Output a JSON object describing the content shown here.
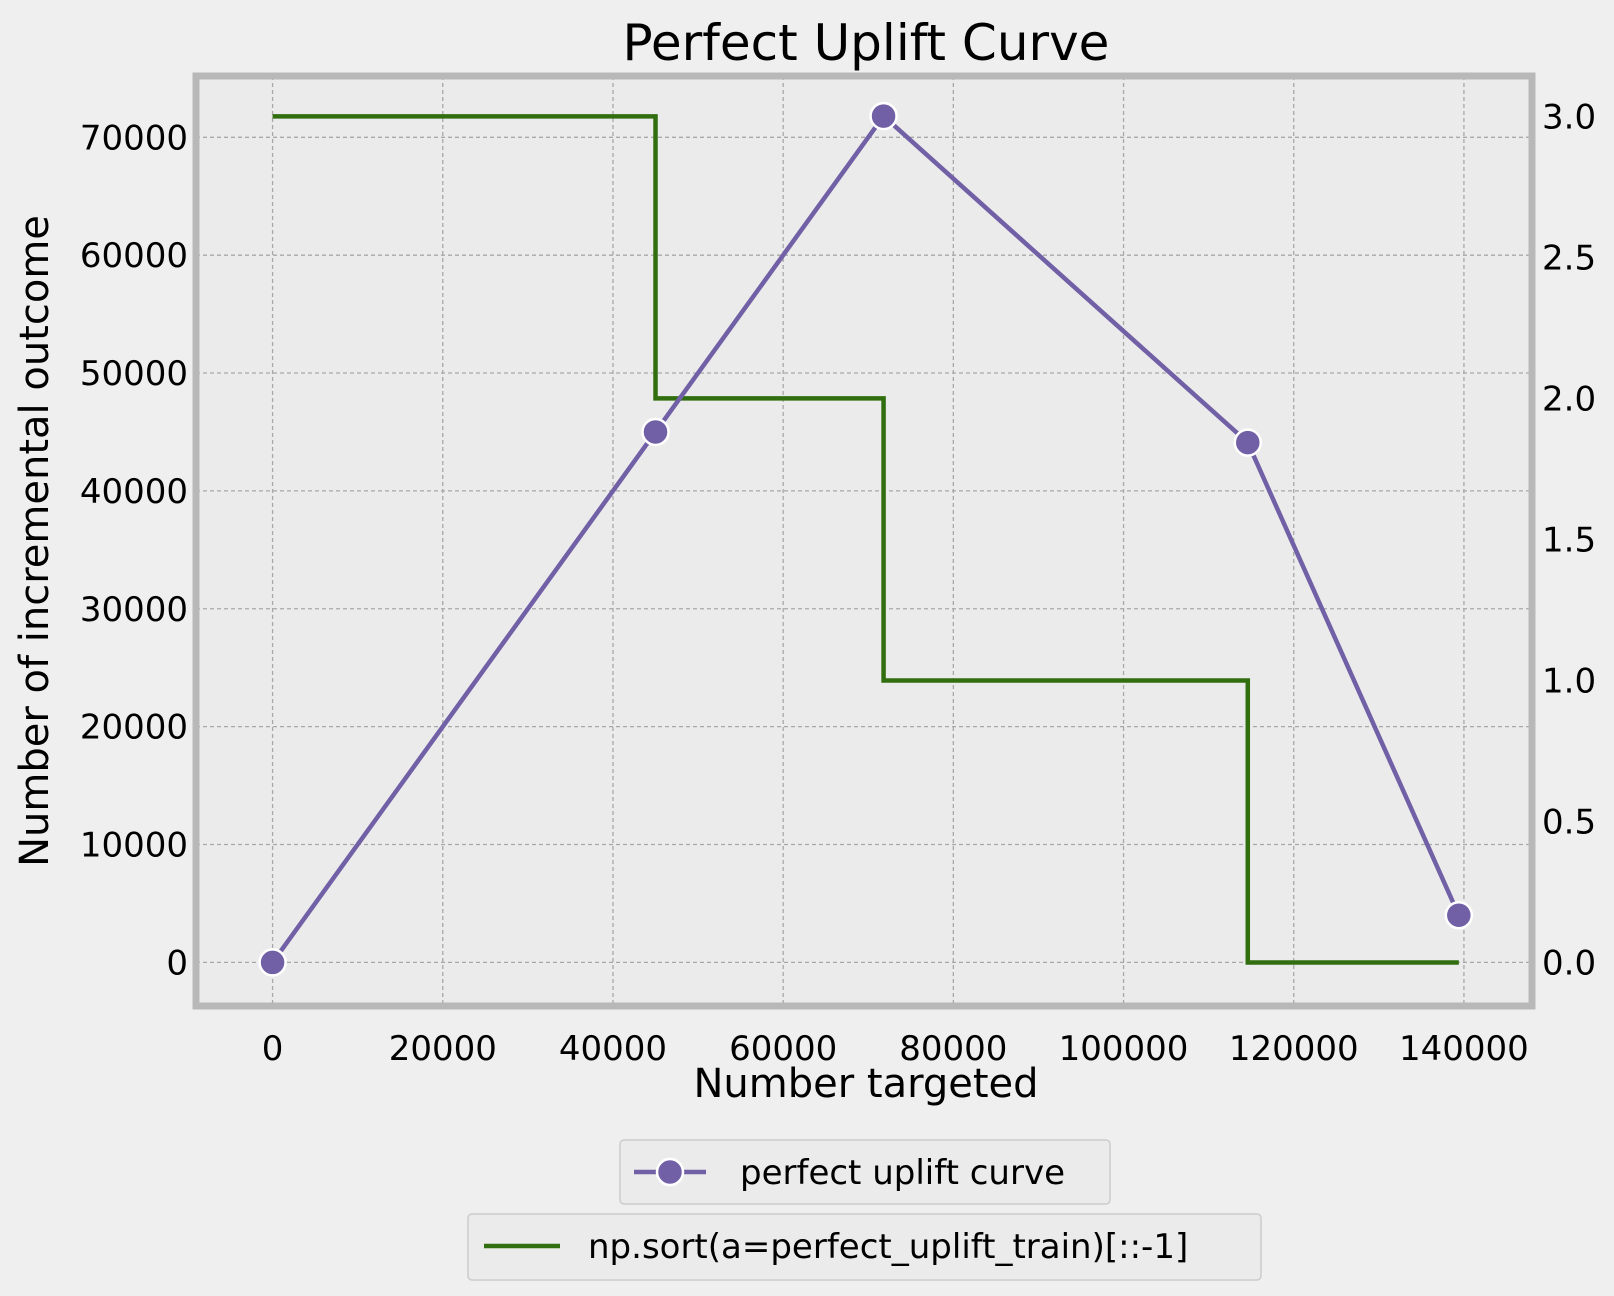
{
  "chart_data": {
    "type": "line",
    "title": "Perfect Uplift Curve",
    "xlabel": "Number targeted",
    "ylabel": "Number of incremental outcome",
    "y2label": "",
    "xlim": [
      -9000,
      148000
    ],
    "ylim": [
      -3700,
      75200
    ],
    "y2lim": [
      -0.154,
      3.143
    ],
    "xticks": [
      0,
      20000,
      40000,
      60000,
      80000,
      100000,
      120000,
      140000
    ],
    "yticks": [
      0,
      10000,
      20000,
      30000,
      40000,
      50000,
      60000,
      70000
    ],
    "y2ticks": [
      0.0,
      0.5,
      1.0,
      1.5,
      2.0,
      2.5,
      3.0
    ],
    "grid": true,
    "legend_placement": "bottom-center (below plot)",
    "series": [
      {
        "name": "perfect uplift curve",
        "axis": "left",
        "style": "line-with-markers",
        "color": "#7160a6",
        "x": [
          0,
          45000,
          71800,
          114600,
          139400
        ],
        "y": [
          0,
          45000,
          71800,
          44100,
          4000
        ]
      },
      {
        "name": "np.sort(a=perfect_uplift_train)[::-1]",
        "axis": "right",
        "style": "step-post",
        "color": "#316e0f",
        "x": [
          0,
          45000,
          71800,
          114600,
          139400
        ],
        "y": [
          3,
          2,
          1,
          0,
          0
        ]
      }
    ],
    "colors": {
      "figure_bg": "#efefef",
      "axes_bg": "#ebebeb",
      "frame": "#b8b8b8",
      "grid": "#a8a8a8"
    }
  }
}
